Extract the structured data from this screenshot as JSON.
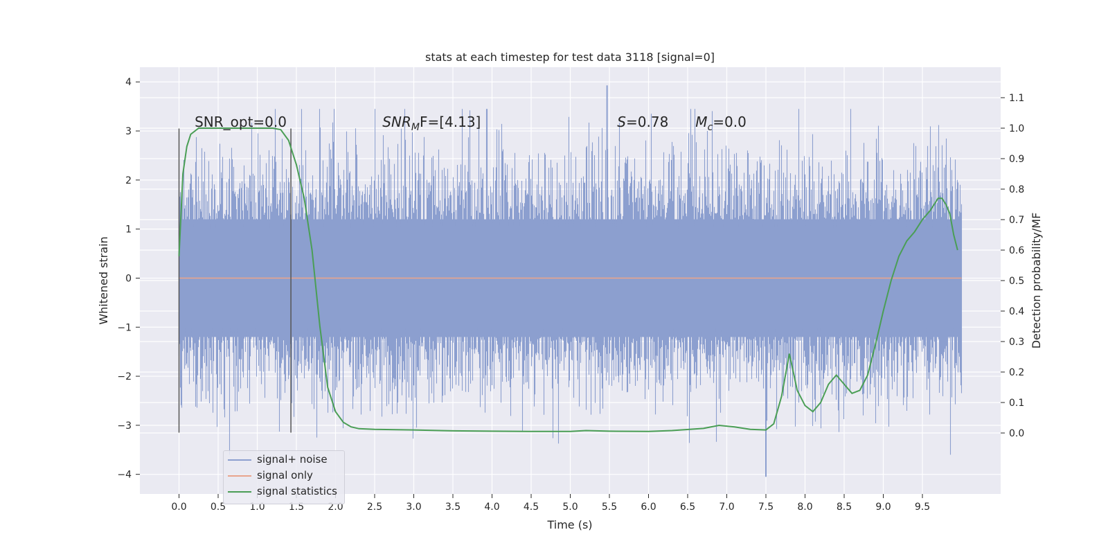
{
  "chart_data": {
    "type": "line",
    "title": "stats at each timestep for test data 3118 [signal=0]",
    "xlabel": "Time (s)",
    "ylabel_left": "Whitened strain",
    "ylabel_right": "Detection probability/MF",
    "xlim": [
      -0.5,
      10.5
    ],
    "ylim_left": [
      -4.4,
      4.3
    ],
    "ylim_right": [
      -0.2,
      1.2
    ],
    "x_ticks": [
      "0.0",
      "0.5",
      "1.0",
      "1.5",
      "2.0",
      "2.5",
      "3.0",
      "3.5",
      "4.0",
      "4.5",
      "5.0",
      "5.5",
      "6.0",
      "6.5",
      "7.0",
      "7.5",
      "8.0",
      "8.5",
      "9.0",
      "9.5"
    ],
    "y_left_ticks": [
      "−4",
      "−3",
      "−2",
      "−1",
      "0",
      "1",
      "2",
      "3",
      "4"
    ],
    "y_right_ticks": [
      "0.0",
      "0.1",
      "0.2",
      "0.3",
      "0.4",
      "0.5",
      "0.6",
      "0.7",
      "0.8",
      "0.9",
      "1.0",
      "1.1"
    ],
    "grid": true,
    "legend_position": "lower-left",
    "annotations": [
      {
        "text": "SNR_opt=0.0",
        "x": 0.2,
        "y": 3.0
      },
      {
        "text": "SNR_MF=[4.13]",
        "x": 2.6,
        "y": 3.0
      },
      {
        "text": "S=0.78",
        "x": 5.6,
        "y": 3.0
      },
      {
        "text": "M_c=0.0",
        "x": 6.6,
        "y": 3.0
      }
    ],
    "vlines": [
      {
        "x": 0.0,
        "ymin": -3.15,
        "ymax": 3.05
      },
      {
        "x": 1.43,
        "ymin": -3.15,
        "ymax": 3.05
      }
    ],
    "series": [
      {
        "name": "signal+ noise",
        "axis": "left",
        "color": "#8c9fcf",
        "description_of_envelope": "noisy strain, bulk within ±1.2, peaks to about ±3.5",
        "x_range": [
          0.0,
          10.0
        ],
        "peak_max": 3.93,
        "peak_min": -4.05
      },
      {
        "name": "signal only",
        "axis": "left",
        "color": "#e8a48c",
        "x": [
          0.0,
          10.0
        ],
        "y": [
          0.0,
          0.0
        ]
      },
      {
        "name": "signal statistics",
        "axis": "right",
        "color": "#4a9e55",
        "x": [
          0.0,
          0.05,
          0.1,
          0.15,
          0.25,
          0.4,
          0.6,
          0.8,
          1.0,
          1.2,
          1.3,
          1.4,
          1.5,
          1.6,
          1.7,
          1.8,
          1.9,
          2.0,
          2.1,
          2.2,
          2.3,
          2.5,
          3.0,
          3.5,
          4.0,
          4.5,
          5.0,
          5.2,
          5.5,
          6.0,
          6.3,
          6.7,
          6.9,
          7.1,
          7.3,
          7.5,
          7.6,
          7.7,
          7.8,
          7.9,
          8.0,
          8.1,
          8.2,
          8.3,
          8.4,
          8.5,
          8.6,
          8.7,
          8.8,
          8.9,
          9.0,
          9.1,
          9.2,
          9.3,
          9.4,
          9.5,
          9.6,
          9.65,
          9.7,
          9.75,
          9.8,
          9.85,
          9.9,
          9.95
        ],
        "y": [
          0.58,
          0.85,
          0.94,
          0.98,
          1.0,
          1.0,
          1.0,
          1.0,
          1.0,
          1.0,
          0.995,
          0.96,
          0.88,
          0.77,
          0.6,
          0.35,
          0.15,
          0.07,
          0.035,
          0.02,
          0.014,
          0.012,
          0.01,
          0.007,
          0.006,
          0.005,
          0.005,
          0.008,
          0.006,
          0.005,
          0.008,
          0.015,
          0.025,
          0.02,
          0.012,
          0.01,
          0.03,
          0.12,
          0.26,
          0.14,
          0.09,
          0.07,
          0.1,
          0.16,
          0.19,
          0.16,
          0.13,
          0.14,
          0.19,
          0.29,
          0.4,
          0.5,
          0.58,
          0.63,
          0.66,
          0.7,
          0.73,
          0.75,
          0.77,
          0.77,
          0.75,
          0.72,
          0.65,
          0.6
        ]
      }
    ]
  },
  "legend": {
    "items": [
      {
        "label": "signal+ noise",
        "color": "#8c9fcf"
      },
      {
        "label": "signal only",
        "color": "#e8a48c"
      },
      {
        "label": "signal statistics",
        "color": "#4a9e55"
      }
    ]
  }
}
